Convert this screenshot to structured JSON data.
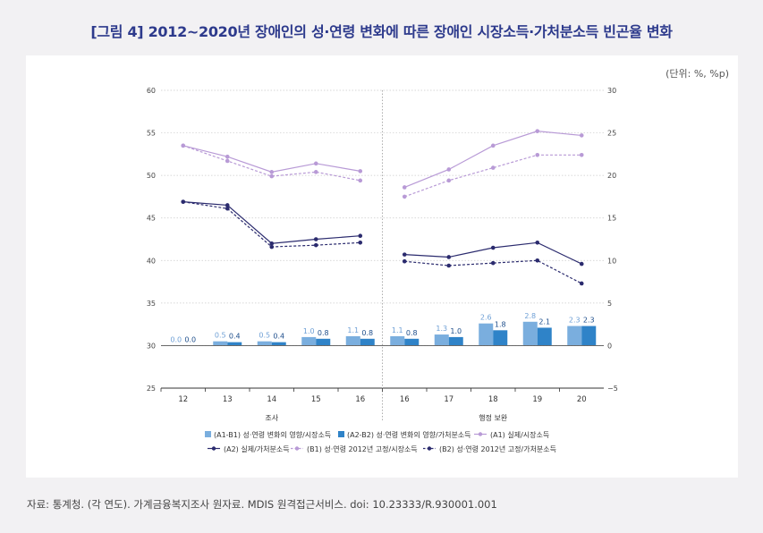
{
  "title": "[그림 4] 2012~2020년 장애인의 성·연령 변화에 따른 장애인 시장소득·가처분소득 빈곤율 변화",
  "unit": "(단위: %, %p)",
  "source": "자료: 통계청. (각 연도). 가계금융복지조사 원자료. MDIS 원격접근서비스. doi: 10.23333/R.930001.001",
  "colors": {
    "bar_light": "#7aaede",
    "bar_dark": "#2f83c8",
    "line_light": "#b89ad6",
    "line_dark": "#2b2b6e",
    "label_light": "#6fa0d6",
    "label_dark": "#1f4f8c"
  },
  "chart_data": {
    "type": "bar+line",
    "groups": [
      {
        "label": "조사",
        "x": [
          "12",
          "13",
          "14",
          "15",
          "16"
        ]
      },
      {
        "label": "행정 보완",
        "x": [
          "16",
          "17",
          "18",
          "19",
          "20"
        ]
      }
    ],
    "x": [
      "12",
      "13",
      "14",
      "15",
      "16",
      "16",
      "17",
      "18",
      "19",
      "20"
    ],
    "left_axis": {
      "ylim": [
        25,
        60
      ],
      "ticks": [
        25,
        30,
        35,
        40,
        45,
        50,
        55,
        60
      ]
    },
    "right_axis": {
      "ylim": [
        -5,
        30
      ],
      "ticks": [
        -5,
        0,
        5,
        10,
        15,
        20,
        25,
        30
      ]
    },
    "bar_series": [
      {
        "name": "(A1-B1) 성·연령 변화의 영향/시장소득",
        "axis": "right",
        "values": [
          0.0,
          0.5,
          0.5,
          1.0,
          1.1,
          1.1,
          1.3,
          2.6,
          2.8,
          2.3
        ],
        "labels": [
          "0.0",
          "0.5",
          "0.5",
          "1.0",
          "1.1",
          "1.1",
          "1.3",
          "2.6",
          "2.8",
          "2.3"
        ]
      },
      {
        "name": "(A2-B2) 성·연령 변화의 영향/가처분소득",
        "axis": "right",
        "values": [
          0.0,
          0.4,
          0.4,
          0.8,
          0.8,
          0.8,
          1.0,
          1.8,
          2.1,
          2.3
        ],
        "labels": [
          "0.0",
          "0.4",
          "0.4",
          "0.8",
          "0.8",
          "0.8",
          "1.0",
          "1.8",
          "2.1",
          "2.3"
        ]
      }
    ],
    "line_series": [
      {
        "name": "(A1) 실제/시장소득",
        "axis": "left",
        "style": "solid",
        "color": "light",
        "values": [
          53.5,
          52.2,
          50.4,
          51.4,
          50.5,
          48.6,
          50.7,
          53.5,
          55.2,
          54.7
        ]
      },
      {
        "name": "(A2) 실제/가처분소득",
        "axis": "left",
        "style": "solid",
        "color": "dark",
        "values": [
          46.9,
          46.5,
          42.0,
          42.5,
          42.9,
          40.7,
          40.4,
          41.5,
          42.1,
          39.6
        ]
      },
      {
        "name": "(B1) 성·연령 2012년 고정/시장소득",
        "axis": "left",
        "style": "dashed",
        "color": "light",
        "values": [
          53.5,
          51.7,
          49.9,
          50.4,
          49.4,
          47.5,
          49.4,
          50.9,
          52.4,
          52.4
        ]
      },
      {
        "name": "(B2) 성·연령 2012년 고정/가처분소득",
        "axis": "left",
        "style": "dashed",
        "color": "dark",
        "values": [
          46.9,
          46.1,
          41.6,
          41.8,
          42.1,
          39.9,
          39.4,
          39.7,
          40.0,
          37.3
        ]
      }
    ],
    "legend_position": "bottom"
  }
}
